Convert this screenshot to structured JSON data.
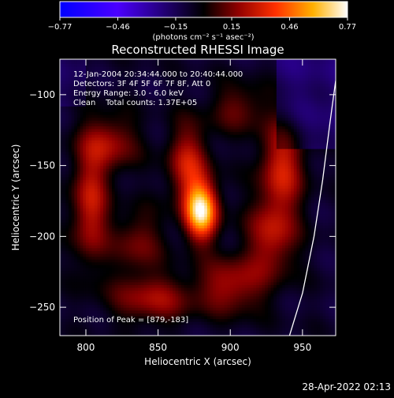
{
  "chart_data": {
    "type": "heatmap",
    "title": "Reconstructed RHESSI Image",
    "xlabel": "Heliocentric X (arcsec)",
    "ylabel": "Heliocentric Y (arcsec)",
    "xlim": [
      782,
      973
    ],
    "ylim": [
      -270,
      -75
    ],
    "x_ticks": [
      800,
      850,
      900,
      950
    ],
    "y_ticks": [
      -100,
      -150,
      -200,
      -250
    ],
    "x_tick_labels": [
      "800",
      "850",
      "900",
      "950"
    ],
    "y_tick_labels": [
      "−100",
      "−150",
      "−200",
      "−250"
    ],
    "colorbar": {
      "range": [
        -0.77,
        0.77
      ],
      "ticks": [
        -0.77,
        -0.46,
        -0.15,
        0.15,
        0.46,
        0.77
      ],
      "tick_labels": [
        "−0.77",
        "−0.46",
        "−0.15",
        "0.15",
        "0.46",
        "0.77"
      ],
      "unit_label": "(photons cm⁻² s⁻¹ asec⁻²)",
      "colors": [
        "#0000ff",
        "#4b00ff",
        "#000000",
        "#c00000",
        "#ff8000",
        "#ffff80",
        "#ffffff"
      ]
    },
    "annotations": {
      "time_range": "12-Jan-2004 20:34:44.000 to 20:40:44.000",
      "detectors": "Detectors: 3F 4F 5F 6F 7F 8F, Att 0",
      "energy": "Energy Range: 3.0 - 6.0 keV",
      "clean": "Clean    Total counts: 1.37E+05",
      "peak": "Position of Peak = [879,-183]"
    },
    "peak": {
      "x": 879,
      "y": -183
    },
    "sources": [
      {
        "x": 879,
        "y": -183,
        "amp": 0.77,
        "sx": 8,
        "sy": 14
      },
      {
        "x": 870,
        "y": -150,
        "amp": 0.35,
        "sx": 10,
        "sy": 20
      },
      {
        "x": 802,
        "y": -180,
        "amp": 0.35,
        "sx": 9,
        "sy": 28
      },
      {
        "x": 815,
        "y": -135,
        "amp": 0.28,
        "sx": 14,
        "sy": 14
      },
      {
        "x": 935,
        "y": -150,
        "amp": 0.36,
        "sx": 11,
        "sy": 22
      },
      {
        "x": 928,
        "y": -200,
        "amp": 0.32,
        "sx": 12,
        "sy": 20
      },
      {
        "x": 900,
        "y": -235,
        "amp": 0.3,
        "sx": 16,
        "sy": 14
      },
      {
        "x": 845,
        "y": -245,
        "amp": 0.28,
        "sx": 20,
        "sy": 12
      },
      {
        "x": 835,
        "y": -205,
        "amp": 0.22,
        "sx": 12,
        "sy": 16
      },
      {
        "x": 905,
        "y": -110,
        "amp": 0.2,
        "sx": 14,
        "sy": 12
      }
    ],
    "limb_curve": [
      [
        941,
        -270
      ],
      [
        950,
        -240
      ],
      [
        958,
        -200
      ],
      [
        964,
        -160
      ],
      [
        969,
        -120
      ],
      [
        973,
        -90
      ]
    ]
  },
  "footer": {
    "date": "28-Apr-2022 02:13"
  }
}
